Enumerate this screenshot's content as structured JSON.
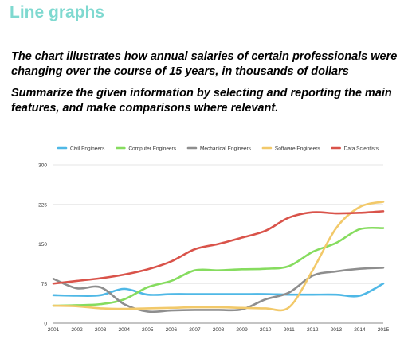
{
  "page": {
    "heading": "Line graphs",
    "prompt_1": "The chart illustrates how annual salaries of certain professionals were changing over the course of 15 years, in thousands of dollars",
    "prompt_2": "Summarize the given information by selecting and reporting the main features, and make comparisons where relevant."
  },
  "chart_data": {
    "type": "line",
    "title": "",
    "xlabel": "",
    "ylabel": "",
    "x": [
      "2001",
      "2002",
      "2003",
      "2004",
      "2005",
      "2006",
      "2007",
      "2008",
      "2009",
      "2010",
      "2011",
      "2012",
      "2013",
      "2014",
      "2015"
    ],
    "y_ticks": [
      "0",
      "75",
      "150",
      "225",
      "300"
    ],
    "ylim": [
      0,
      300
    ],
    "grid": "horizontal",
    "legend": "top",
    "series": [
      {
        "name": "Civil Engineers",
        "color": "#4fb8e6",
        "values": [
          53,
          52,
          53,
          65,
          54,
          55,
          55,
          55,
          55,
          55,
          54,
          54,
          54,
          52,
          75
        ]
      },
      {
        "name": "Computer Engineers",
        "color": "#86dc5f",
        "values": [
          33,
          34,
          36,
          45,
          68,
          80,
          100,
          100,
          102,
          103,
          108,
          135,
          152,
          178,
          180
        ]
      },
      {
        "name": "Mechanical Engineers",
        "color": "#8e8e8e",
        "values": [
          84,
          66,
          68,
          36,
          22,
          24,
          25,
          25,
          26,
          45,
          58,
          90,
          98,
          103,
          105
        ]
      },
      {
        "name": "Software Engineers",
        "color": "#f2c96a",
        "values": [
          33,
          32,
          28,
          27,
          28,
          29,
          30,
          30,
          29,
          28,
          30,
          100,
          180,
          220,
          230
        ]
      },
      {
        "name": "Data Scientists",
        "color": "#d9534a",
        "values": [
          75,
          80,
          85,
          92,
          102,
          117,
          140,
          150,
          162,
          175,
          200,
          210,
          208,
          209,
          212
        ]
      }
    ]
  }
}
